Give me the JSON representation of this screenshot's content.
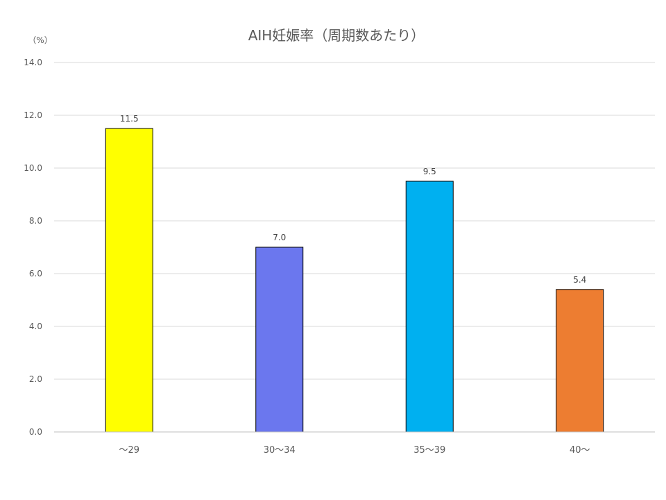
{
  "chart_data": {
    "type": "bar",
    "title": "AIH妊娠率（周期数あたり）",
    "unit_label": "（%）",
    "categories": [
      "～29",
      "30～34",
      "35～39",
      "40～"
    ],
    "values": [
      11.5,
      7.0,
      9.5,
      5.4
    ],
    "value_labels": [
      "11.5",
      "7.0",
      "9.5",
      "5.4"
    ],
    "colors": [
      "#ffff00",
      "#6b77ee",
      "#00b0f0",
      "#ed7d31"
    ],
    "ylim": [
      0,
      14
    ],
    "yticks": [
      "0.0",
      "2.0",
      "4.0",
      "6.0",
      "8.0",
      "10.0",
      "12.0",
      "14.0"
    ],
    "ytick_values": [
      0,
      2,
      4,
      6,
      8,
      10,
      12,
      14
    ],
    "grid": true,
    "legend": "none"
  }
}
